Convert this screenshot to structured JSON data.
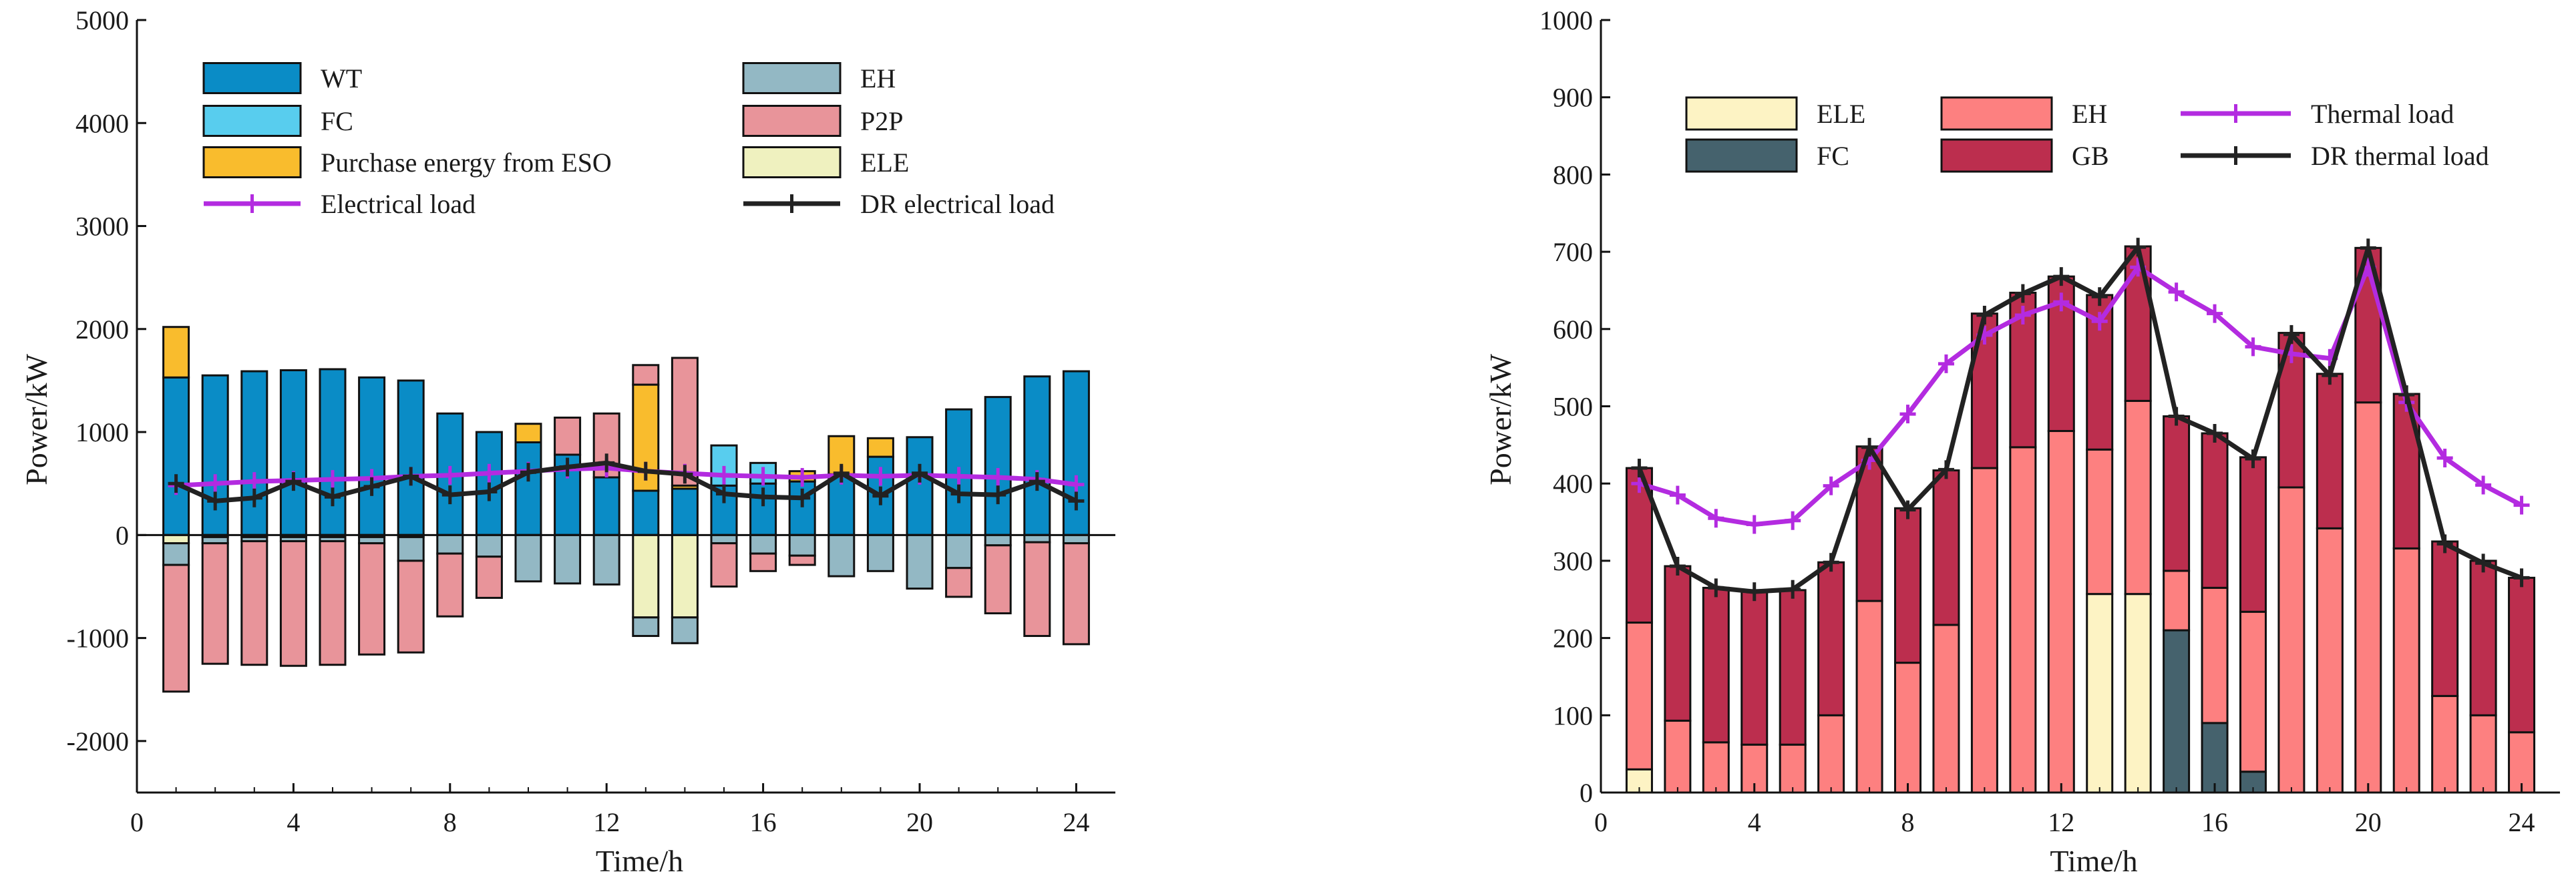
{
  "chart_data": [
    {
      "type": "bar",
      "stacked": true,
      "title": "",
      "xlabel": "Time/h",
      "ylabel": "Power/kW",
      "xlim": [
        0,
        25
      ],
      "ylim": [
        -2500,
        5000
      ],
      "xticks": [
        0,
        4,
        8,
        12,
        16,
        20,
        24
      ],
      "yticks": [
        -2000,
        -1000,
        0,
        1000,
        2000,
        3000,
        4000,
        5000
      ],
      "x": [
        1,
        2,
        3,
        4,
        5,
        6,
        7,
        8,
        9,
        10,
        11,
        12,
        13,
        14,
        15,
        16,
        17,
        18,
        19,
        20,
        21,
        22,
        23,
        24
      ],
      "series": [
        {
          "name": "WT",
          "color": "#0A8CC6",
          "values": [
            1530,
            1550,
            1590,
            1600,
            1610,
            1530,
            1500,
            1180,
            1000,
            900,
            780,
            560,
            430,
            450,
            480,
            500,
            520,
            590,
            760,
            950,
            1220,
            1340,
            1540,
            1590
          ]
        },
        {
          "name": "FC",
          "color": "#58CDEE",
          "values": [
            0,
            0,
            0,
            0,
            0,
            0,
            0,
            0,
            0,
            0,
            0,
            0,
            0,
            0,
            390,
            200,
            0,
            0,
            0,
            0,
            0,
            0,
            0,
            0
          ]
        },
        {
          "name": "Purchase energy from ESO",
          "color": "#F9BC2D",
          "values": [
            490,
            0,
            0,
            0,
            0,
            0,
            0,
            0,
            0,
            180,
            0,
            0,
            1030,
            30,
            0,
            0,
            100,
            370,
            180,
            0,
            0,
            0,
            0,
            0
          ]
        },
        {
          "name": "P2P",
          "color": "#E8949A",
          "values": [
            0,
            0,
            0,
            0,
            0,
            0,
            0,
            0,
            0,
            0,
            360,
            620,
            190,
            1240,
            0,
            0,
            0,
            0,
            0,
            0,
            0,
            0,
            0,
            0
          ]
        },
        {
          "name": "ELE",
          "color": "#EFF1BF",
          "values": [
            -80,
            -20,
            -20,
            -20,
            -20,
            -20,
            -20,
            0,
            0,
            0,
            0,
            0,
            -800,
            -800,
            0,
            0,
            0,
            0,
            0,
            0,
            0,
            0,
            0,
            0
          ]
        },
        {
          "name": "EH",
          "color": "#93B8C4",
          "values": [
            -210,
            -60,
            -40,
            -40,
            -40,
            -60,
            -230,
            -180,
            -210,
            -450,
            -470,
            -480,
            -180,
            -250,
            -80,
            -180,
            -200,
            -400,
            -350,
            -520,
            -320,
            -100,
            -70,
            -80
          ]
        },
        {
          "name": "P2P",
          "color": "#E8949A",
          "values": [
            -1230,
            -1170,
            -1200,
            -1210,
            -1200,
            -1080,
            -890,
            -610,
            -400,
            0,
            0,
            0,
            0,
            0,
            -420,
            -170,
            -90,
            0,
            0,
            0,
            -280,
            -660,
            -910,
            -980
          ]
        }
      ],
      "lines": [
        {
          "name": "Electrical load",
          "color": "#B32BE0",
          "values": [
            480,
            500,
            520,
            530,
            540,
            550,
            570,
            580,
            600,
            620,
            640,
            650,
            620,
            600,
            580,
            570,
            560,
            580,
            570,
            580,
            570,
            560,
            540,
            490
          ]
        },
        {
          "name": "DR electrical load",
          "color": "#222222",
          "values": [
            500,
            330,
            360,
            520,
            370,
            470,
            570,
            390,
            420,
            610,
            660,
            700,
            620,
            590,
            400,
            370,
            360,
            600,
            380,
            600,
            400,
            390,
            520,
            330
          ]
        }
      ],
      "legend": [
        "WT",
        "FC",
        "Purchase energy from ESO",
        "Electrical load",
        "EH",
        "P2P",
        "ELE",
        "DR electrical load"
      ]
    },
    {
      "type": "bar",
      "stacked": true,
      "title": "",
      "xlabel": "Time/h",
      "ylabel": "Power/kW",
      "xlim": [
        0,
        25
      ],
      "ylim": [
        0,
        1000
      ],
      "xticks": [
        0,
        4,
        8,
        12,
        16,
        20,
        24
      ],
      "yticks": [
        0,
        100,
        200,
        300,
        400,
        500,
        600,
        700,
        800,
        900,
        1000
      ],
      "x": [
        1,
        2,
        3,
        4,
        5,
        6,
        7,
        8,
        9,
        10,
        11,
        12,
        13,
        14,
        15,
        16,
        17,
        18,
        19,
        20,
        21,
        22,
        23,
        24
      ],
      "series": [
        {
          "name": "ELE",
          "color": "#FDF3C4",
          "values": [
            30,
            0,
            0,
            0,
            0,
            0,
            0,
            0,
            0,
            0,
            0,
            0,
            257,
            257,
            0,
            0,
            0,
            0,
            0,
            0,
            0,
            0,
            0,
            0
          ]
        },
        {
          "name": "FC",
          "color": "#45626D",
          "values": [
            0,
            0,
            0,
            0,
            0,
            0,
            0,
            0,
            0,
            0,
            0,
            0,
            0,
            0,
            210,
            90,
            27,
            0,
            0,
            0,
            0,
            0,
            0,
            0
          ]
        },
        {
          "name": "EH",
          "color": "#FD8080",
          "values": [
            190,
            93,
            65,
            62,
            62,
            100,
            248,
            168,
            217,
            420,
            447,
            468,
            187,
            250,
            77,
            175,
            207,
            395,
            342,
            505,
            316,
            125,
            100,
            78
          ]
        },
        {
          "name": "GB",
          "color": "#BC2E4E",
          "values": [
            200,
            200,
            200,
            200,
            200,
            198,
            200,
            200,
            200,
            200,
            200,
            200,
            200,
            200,
            200,
            200,
            200,
            200,
            200,
            200,
            200,
            200,
            200,
            200
          ]
        }
      ],
      "lines": [
        {
          "name": "Thermal load",
          "color": "#B32BE0",
          "values": [
            400,
            385,
            355,
            347,
            352,
            397,
            430,
            490,
            555,
            592,
            618,
            635,
            610,
            680,
            648,
            620,
            577,
            568,
            562,
            680,
            505,
            433,
            398,
            372
          ]
        },
        {
          "name": "DR thermal load",
          "color": "#222222",
          "values": [
            420,
            293,
            265,
            260,
            263,
            298,
            447,
            366,
            418,
            618,
            646,
            668,
            642,
            706,
            487,
            465,
            432,
            593,
            540,
            705,
            515,
            322,
            297,
            278
          ]
        }
      ],
      "legend": [
        "ELE",
        "FC",
        "EH",
        "GB",
        "Thermal load",
        "DR thermal load"
      ]
    }
  ]
}
